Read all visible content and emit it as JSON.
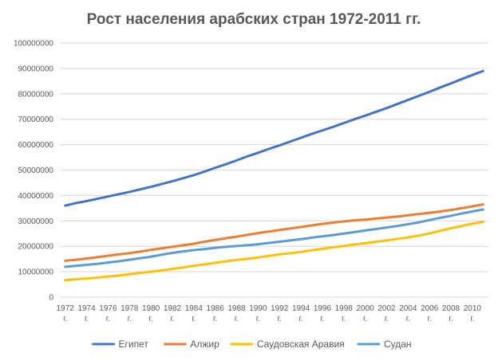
{
  "chart_data": {
    "type": "line",
    "title": "Рост населения арабских стран 1972-2011 гг.",
    "xlabel": "",
    "ylabel": "",
    "ylim": [
      0,
      100000000
    ],
    "y_ticks": [
      0,
      10000000,
      20000000,
      30000000,
      40000000,
      50000000,
      60000000,
      70000000,
      80000000,
      90000000,
      100000000
    ],
    "y_tick_labels": [
      "0",
      "10000000",
      "20000000",
      "30000000",
      "40000000",
      "50000000",
      "60000000",
      "70000000",
      "80000000",
      "90000000",
      "100000000"
    ],
    "grid": true,
    "legend_position": "bottom",
    "x": [
      1972,
      1973,
      1974,
      1975,
      1976,
      1977,
      1978,
      1979,
      1980,
      1981,
      1982,
      1983,
      1984,
      1985,
      1986,
      1987,
      1988,
      1989,
      1990,
      1991,
      1992,
      1993,
      1994,
      1995,
      1996,
      1997,
      1998,
      1999,
      2000,
      2001,
      2002,
      2003,
      2004,
      2005,
      2006,
      2007,
      2008,
      2009,
      2010,
      2011
    ],
    "x_tick_labels": [
      {
        "x": 1972,
        "year": "1972",
        "suffix": "г."
      },
      {
        "x": 1974,
        "year": "1974",
        "suffix": "г."
      },
      {
        "x": 1976,
        "year": "1976",
        "suffix": "г."
      },
      {
        "x": 1978,
        "year": "1978",
        "suffix": "г."
      },
      {
        "x": 1980,
        "year": "1980",
        "suffix": "г."
      },
      {
        "x": 1982,
        "year": "1982",
        "suffix": "г."
      },
      {
        "x": 1984,
        "year": "1984",
        "suffix": "г."
      },
      {
        "x": 1986,
        "year": "1986",
        "suffix": "г."
      },
      {
        "x": 1988,
        "year": "1988",
        "suffix": "г."
      },
      {
        "x": 1990,
        "year": "1990",
        "suffix": "г."
      },
      {
        "x": 1992,
        "year": "1992",
        "suffix": "г."
      },
      {
        "x": 1994,
        "year": "1994",
        "suffix": "г."
      },
      {
        "x": 1996,
        "year": "1996",
        "suffix": "г."
      },
      {
        "x": 1998,
        "year": "1998",
        "suffix": "г."
      },
      {
        "x": 2000,
        "year": "2000",
        "suffix": "г."
      },
      {
        "x": 2002,
        "year": "2002",
        "suffix": "г."
      },
      {
        "x": 2004,
        "year": "2004",
        "suffix": "г."
      },
      {
        "x": 2006,
        "year": "2006",
        "suffix": "г."
      },
      {
        "x": 2008,
        "year": "2008",
        "suffix": "г."
      },
      {
        "x": 2010,
        "year": "2010",
        "suffix": "г."
      }
    ],
    "series": [
      {
        "name": "Египет",
        "color": "#4472C4",
        "values": [
          36000000,
          37000000,
          37800000,
          38700000,
          39600000,
          40500000,
          41400000,
          42400000,
          43400000,
          44500000,
          45600000,
          46800000,
          48000000,
          49400000,
          50900000,
          52300000,
          53800000,
          55400000,
          56800000,
          58300000,
          59700000,
          61200000,
          62700000,
          64200000,
          65600000,
          67000000,
          68500000,
          70000000,
          71400000,
          72900000,
          74400000,
          76000000,
          77600000,
          79200000,
          80800000,
          82500000,
          84100000,
          85800000,
          87400000,
          89000000
        ]
      },
      {
        "name": "Алжир",
        "color": "#ED7D31",
        "values": [
          14300000,
          14700000,
          15200000,
          15700000,
          16300000,
          16800000,
          17300000,
          17900000,
          18600000,
          19200000,
          19800000,
          20400000,
          21000000,
          21800000,
          22500000,
          23200000,
          23800000,
          24500000,
          25200000,
          25800000,
          26400000,
          27000000,
          27600000,
          28200000,
          28800000,
          29300000,
          29800000,
          30200000,
          30500000,
          30900000,
          31300000,
          31700000,
          32200000,
          32700000,
          33200000,
          33700000,
          34300000,
          35000000,
          35700000,
          36500000
        ]
      },
      {
        "name": "Саудовская Аравия",
        "color": "#FFC000",
        "values": [
          6700000,
          7000000,
          7300000,
          7700000,
          8100000,
          8500000,
          9000000,
          9500000,
          10000000,
          10500000,
          11100000,
          11700000,
          12300000,
          12900000,
          13500000,
          14100000,
          14600000,
          15100000,
          15600000,
          16200000,
          16800000,
          17300000,
          17800000,
          18400000,
          19000000,
          19600000,
          20100000,
          20700000,
          21200000,
          21800000,
          22300000,
          22900000,
          23500000,
          24200000,
          25100000,
          26100000,
          27100000,
          28000000,
          28900000,
          29600000
        ]
      },
      {
        "name": "Судан",
        "color": "#5B9BD5",
        "values": [
          11900000,
          12300000,
          12700000,
          13100000,
          13600000,
          14100000,
          14700000,
          15300000,
          15900000,
          16700000,
          17400000,
          18000000,
          18500000,
          18900000,
          19400000,
          19800000,
          20100000,
          20400000,
          20800000,
          21300000,
          21800000,
          22300000,
          22800000,
          23400000,
          23900000,
          24400000,
          25000000,
          25600000,
          26200000,
          26800000,
          27400000,
          28000000,
          28700000,
          29400000,
          30300000,
          31200000,
          32000000,
          32900000,
          33700000,
          34500000
        ]
      }
    ]
  }
}
